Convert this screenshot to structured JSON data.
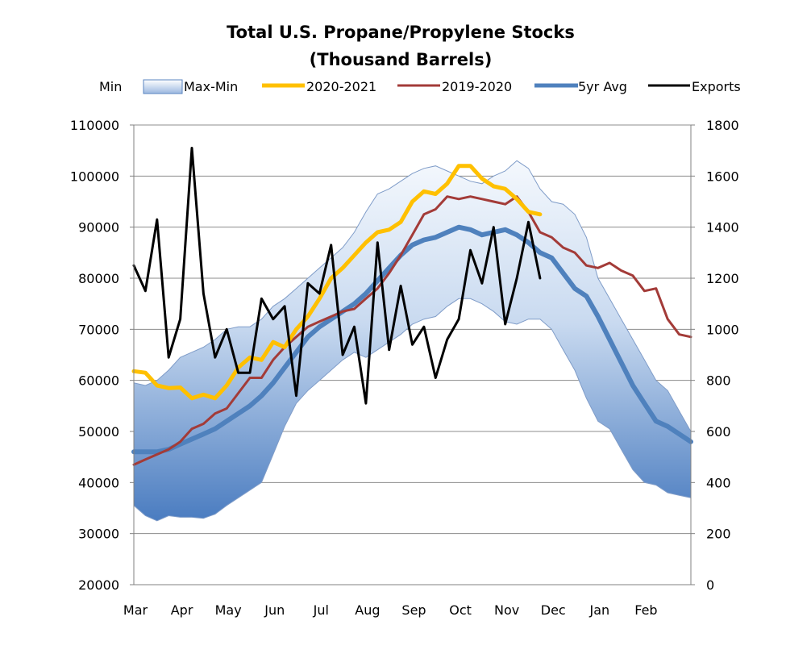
{
  "chart_data": {
    "type": "line",
    "title": "Total U.S. Propane/Propylene Stocks",
    "subtitle": "(Thousand Barrels)",
    "xlabel": "",
    "ylabel": "",
    "y2label": "",
    "categories": [
      "Mar",
      "Apr",
      "May",
      "Jun",
      "Jul",
      "Aug",
      "Sep",
      "Oct",
      "Nov",
      "Dec",
      "Jan",
      "Feb"
    ],
    "ylim": [
      20000,
      110000
    ],
    "yticks": [
      20000,
      30000,
      40000,
      50000,
      60000,
      70000,
      80000,
      90000,
      100000,
      110000
    ],
    "y2lim": [
      0,
      1800
    ],
    "y2ticks": [
      0,
      200,
      400,
      600,
      800,
      1000,
      1200,
      1400,
      1600,
      1800
    ],
    "xlim": [
      0,
      12
    ],
    "grid": true,
    "legend_position": "top",
    "legend": [
      "Min",
      "Max-Min",
      "2020-2021",
      "2019-2020",
      "5yr Avg",
      "Exports"
    ],
    "colors": {
      "band_light": "#f4f8fd",
      "band_dark": "#4a7cc0",
      "y2020": "#ffc000",
      "y2019": "#a33b38",
      "avg": "#4f81bd",
      "exports": "#000000",
      "grid": "#8c8c8c"
    },
    "series": [
      {
        "name": "Min",
        "axis": "left",
        "x": [
          0,
          0.25,
          0.5,
          0.75,
          1,
          1.25,
          1.5,
          1.75,
          2,
          2.25,
          2.5,
          2.75,
          3,
          3.25,
          3.5,
          3.75,
          4,
          4.25,
          4.5,
          4.75,
          5,
          5.25,
          5.5,
          5.75,
          6,
          6.25,
          6.5,
          6.75,
          7,
          7.25,
          7.5,
          7.75,
          8,
          8.25,
          8.5,
          8.75,
          9,
          9.25,
          9.5,
          9.75,
          10,
          10.25,
          10.5,
          10.75,
          11,
          11.25,
          11.5,
          11.75,
          12
        ],
        "values": [
          35500,
          33500,
          32500,
          33500,
          33200,
          33200,
          33000,
          33800,
          35500,
          37000,
          38500,
          40000,
          45500,
          51000,
          55500,
          58000,
          60000,
          62000,
          64000,
          65500,
          64500,
          66000,
          67500,
          69000,
          71000,
          72000,
          72500,
          74500,
          76000,
          76000,
          75000,
          73500,
          71500,
          71000,
          72000,
          72000,
          70000,
          66000,
          62000,
          56500,
          52000,
          50500,
          46500,
          42500,
          40000,
          39500,
          38000,
          37500,
          37000
        ]
      },
      {
        "name": "Max",
        "axis": "left",
        "x": [
          0,
          0.25,
          0.5,
          0.75,
          1,
          1.25,
          1.5,
          1.75,
          2,
          2.25,
          2.5,
          2.75,
          3,
          3.25,
          3.5,
          3.75,
          4,
          4.25,
          4.5,
          4.75,
          5,
          5.25,
          5.5,
          5.75,
          6,
          6.25,
          6.5,
          6.75,
          7,
          7.25,
          7.5,
          7.75,
          8,
          8.25,
          8.5,
          8.75,
          9,
          9.25,
          9.5,
          9.75,
          10,
          10.25,
          10.5,
          10.75,
          11,
          11.25,
          11.5,
          11.75,
          12
        ],
        "values": [
          59500,
          59000,
          60000,
          62000,
          64500,
          65500,
          66500,
          68000,
          70000,
          70500,
          70500,
          72000,
          74500,
          76000,
          78000,
          80000,
          82000,
          84000,
          86000,
          89000,
          93000,
          96500,
          97500,
          99000,
          100500,
          101500,
          102000,
          101000,
          100000,
          99000,
          98500,
          100000,
          101000,
          103000,
          101500,
          97500,
          95000,
          94500,
          92500,
          88000,
          80000,
          76000,
          72000,
          68000,
          64000,
          60000,
          58000,
          54000,
          50000
        ]
      },
      {
        "name": "2020-2021",
        "axis": "left",
        "x": [
          0,
          0.25,
          0.5,
          0.75,
          1,
          1.25,
          1.5,
          1.75,
          2,
          2.25,
          2.5,
          2.75,
          3,
          3.25,
          3.5,
          3.75,
          4,
          4.25,
          4.5,
          4.75,
          5,
          5.25,
          5.5,
          5.75,
          6,
          6.25,
          6.5,
          6.75,
          7,
          7.25,
          7.5,
          7.75,
          8,
          8.25,
          8.5,
          8.75
        ],
        "values": [
          61800,
          61500,
          59000,
          58500,
          58600,
          56500,
          57200,
          56500,
          59000,
          62500,
          64500,
          64000,
          67500,
          66500,
          70000,
          72500,
          76000,
          80000,
          82000,
          84500,
          87000,
          89000,
          89500,
          91000,
          95000,
          97000,
          96500,
          98500,
          102000,
          102000,
          99500,
          98000,
          97500,
          95500,
          93000,
          92500
        ]
      },
      {
        "name": "2019-2020",
        "axis": "left",
        "x": [
          0,
          0.25,
          0.5,
          0.75,
          1,
          1.25,
          1.5,
          1.75,
          2,
          2.25,
          2.5,
          2.75,
          3,
          3.25,
          3.5,
          3.75,
          4,
          4.25,
          4.5,
          4.75,
          5,
          5.25,
          5.5,
          5.75,
          6,
          6.25,
          6.5,
          6.75,
          7,
          7.25,
          7.5,
          7.75,
          8,
          8.25,
          8.5,
          8.75,
          9,
          9.25,
          9.5,
          9.75,
          10,
          10.25,
          10.5,
          10.75,
          11,
          11.25,
          11.5,
          11.75,
          12
        ],
        "values": [
          43500,
          44500,
          45500,
          46500,
          48000,
          50500,
          51500,
          53500,
          54500,
          57500,
          60500,
          60500,
          64000,
          66500,
          68500,
          70500,
          71500,
          72500,
          73500,
          74000,
          76000,
          78000,
          81000,
          84500,
          88500,
          92500,
          93500,
          96000,
          95500,
          96000,
          95500,
          95000,
          94500,
          96000,
          93000,
          89000,
          88000,
          86000,
          85000,
          82500,
          82000,
          83000,
          81500,
          80500,
          77500,
          78000,
          72000,
          69000,
          68500
        ]
      },
      {
        "name": "5yr Avg",
        "axis": "left",
        "x": [
          0,
          0.25,
          0.5,
          0.75,
          1,
          1.25,
          1.5,
          1.75,
          2,
          2.25,
          2.5,
          2.75,
          3,
          3.25,
          3.5,
          3.75,
          4,
          4.25,
          4.5,
          4.75,
          5,
          5.25,
          5.5,
          5.75,
          6,
          6.25,
          6.5,
          6.75,
          7,
          7.25,
          7.5,
          7.75,
          8,
          8.25,
          8.5,
          8.75,
          9,
          9.25,
          9.5,
          9.75,
          10,
          10.25,
          10.5,
          10.75,
          11,
          11.25,
          11.5,
          11.75,
          12
        ],
        "values": [
          46000,
          46000,
          46000,
          46500,
          47500,
          48500,
          49500,
          50500,
          52000,
          53500,
          55000,
          57000,
          59500,
          62500,
          65500,
          68500,
          70500,
          72000,
          73500,
          75000,
          77000,
          79500,
          82000,
          84500,
          86500,
          87500,
          88000,
          89000,
          90000,
          89500,
          88500,
          89000,
          89500,
          88500,
          87000,
          85000,
          84000,
          81000,
          78000,
          76500,
          72500,
          68000,
          63500,
          59000,
          55500,
          52000,
          51000,
          49500,
          48000
        ]
      },
      {
        "name": "Exports",
        "axis": "right",
        "x": [
          0,
          0.25,
          0.5,
          0.75,
          1,
          1.25,
          1.5,
          1.75,
          2,
          2.25,
          2.5,
          2.75,
          3,
          3.25,
          3.5,
          3.75,
          4,
          4.25,
          4.5,
          4.75,
          5,
          5.25,
          5.5,
          5.75,
          6,
          6.25,
          6.5,
          6.75,
          7,
          7.25,
          7.5,
          7.75,
          8,
          8.25,
          8.5,
          8.75
        ],
        "values": [
          1250,
          1150,
          1430,
          890,
          1040,
          1710,
          1140,
          890,
          1000,
          830,
          830,
          1120,
          1040,
          1090,
          740,
          1180,
          1140,
          1330,
          900,
          1010,
          710,
          1340,
          920,
          1170,
          940,
          1010,
          810,
          960,
          1040,
          1310,
          1180,
          1400,
          1020,
          1200,
          1420,
          1200
        ]
      }
    ]
  }
}
